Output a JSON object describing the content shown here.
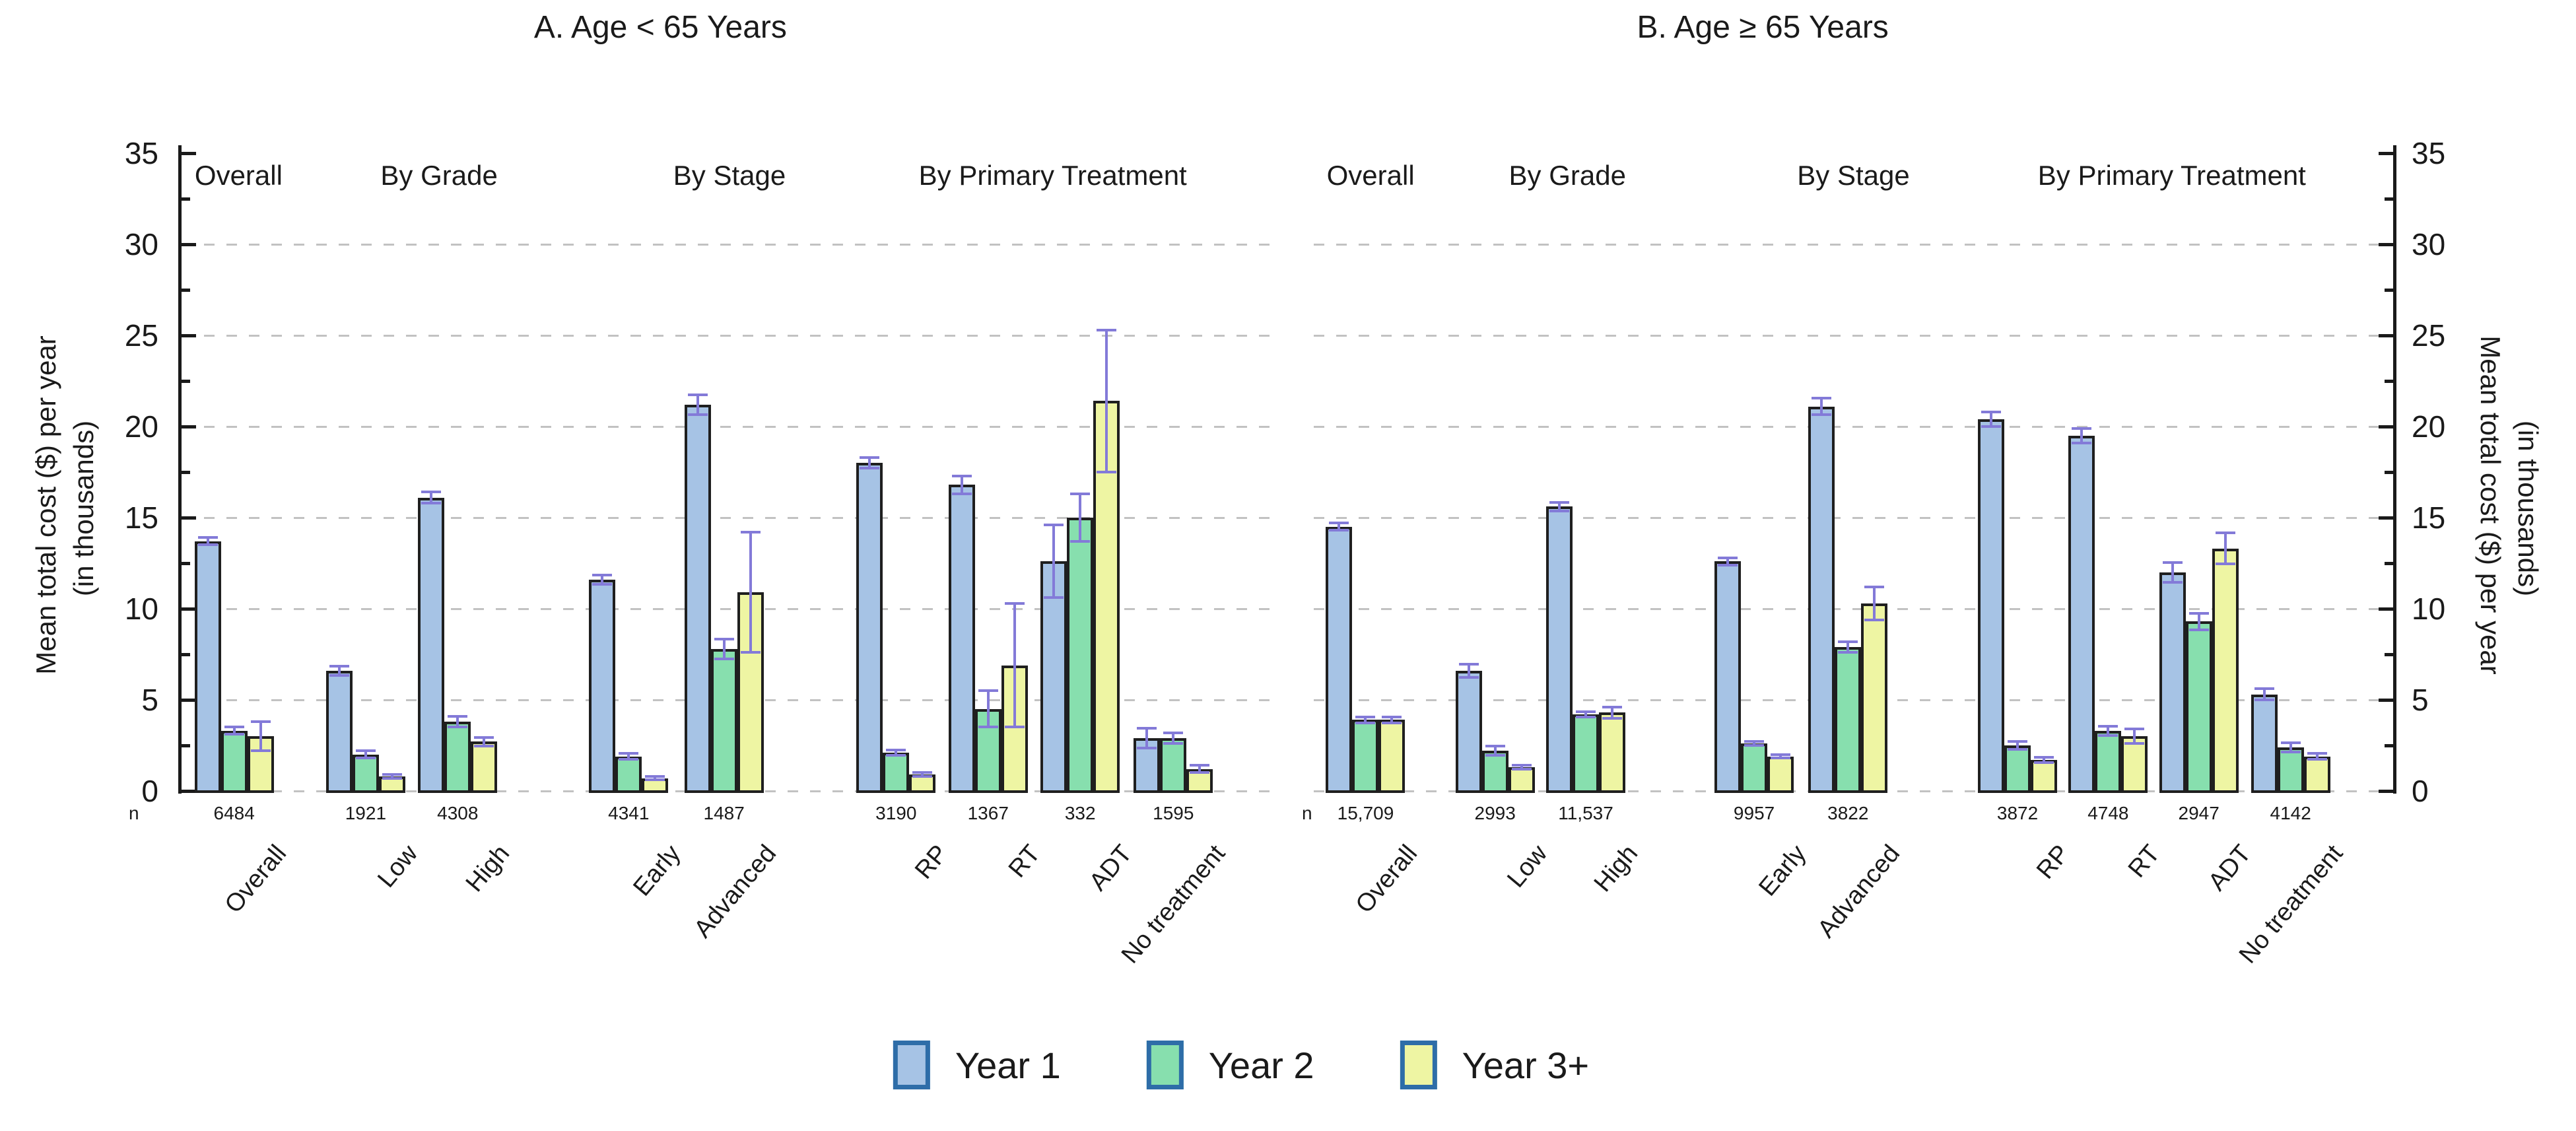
{
  "figure": {
    "background": "#ffffff",
    "y_axis_label_line1": "Mean total cost ($) per year",
    "y_axis_label_line2": "(in thousands)",
    "n_row_prefix": "n",
    "colors": {
      "year1_fill": "#a6c3e5",
      "year2_fill": "#87dfae",
      "year3_fill": "#eef5a3",
      "bar_border": "#1f1f1f",
      "legend_swatch_border": "#2e6da8",
      "error_bar": "#837ad8",
      "gridline": "#c2c2c2",
      "axis": "#1a1a1a"
    },
    "legend": [
      {
        "label": "Year 1",
        "color_key": "year1_fill"
      },
      {
        "label": "Year 2",
        "color_key": "year2_fill"
      },
      {
        "label": "Year 3+",
        "color_key": "year3_fill"
      }
    ]
  },
  "chart_data": [
    {
      "type": "bar",
      "panel": "A",
      "title": "A. Age < 65 Years",
      "ylabel": "Mean total cost ($) per year (in thousands)",
      "ylim": [
        0,
        35
      ],
      "yticks": [
        0,
        5,
        10,
        15,
        20,
        25,
        30,
        35
      ],
      "grid": "horizontal dashed lines every 5 units, including 0",
      "legend_position": "bottom center (shared)",
      "series_names": [
        "Year 1",
        "Year 2",
        "Year 3+"
      ],
      "error_bars": "symmetric, purple, with caps",
      "section_headers": [
        {
          "label": "Overall",
          "pos": 0.012,
          "align": "left"
        },
        {
          "label": "By Grade",
          "pos": 0.235,
          "align": "center"
        },
        {
          "label": "By Stage",
          "pos": 0.5,
          "align": "center"
        },
        {
          "label": "By Primary Treatment",
          "pos": 0.795,
          "align": "center"
        }
      ],
      "groups": [
        {
          "label": "Overall",
          "section": "Overall",
          "n": "6484",
          "pos": 0.048,
          "values": [
            13.7,
            3.3,
            3.0
          ],
          "errors": [
            0.2,
            0.2,
            0.8
          ]
        },
        {
          "label": "Low",
          "section": "By Grade",
          "n": "1921",
          "pos": 0.168,
          "values": [
            6.6,
            2.0,
            0.8
          ],
          "errors": [
            0.25,
            0.2,
            0.1
          ]
        },
        {
          "label": "High",
          "section": "By Grade",
          "n": "4308",
          "pos": 0.252,
          "values": [
            16.1,
            3.8,
            2.7
          ],
          "errors": [
            0.3,
            0.3,
            0.25
          ]
        },
        {
          "label": "Early",
          "section": "By Stage",
          "n": "4341",
          "pos": 0.408,
          "values": [
            11.6,
            1.9,
            0.7
          ],
          "errors": [
            0.25,
            0.15,
            0.1
          ]
        },
        {
          "label": "Advanced",
          "section": "By Stage",
          "n": "1487",
          "pos": 0.495,
          "values": [
            21.2,
            7.8,
            10.9
          ],
          "errors": [
            0.55,
            0.55,
            3.3
          ]
        },
        {
          "label": "RP",
          "section": "By Primary Treatment",
          "n": "3190",
          "pos": 0.652,
          "values": [
            18.0,
            2.1,
            0.9
          ],
          "errors": [
            0.3,
            0.15,
            0.1
          ]
        },
        {
          "label": "RT",
          "section": "By Primary Treatment",
          "n": "1367",
          "pos": 0.736,
          "values": [
            16.8,
            4.5,
            6.9
          ],
          "errors": [
            0.5,
            1.0,
            3.4
          ]
        },
        {
          "label": "ADT",
          "section": "By Primary Treatment",
          "n": "332",
          "pos": 0.82,
          "values": [
            12.6,
            15.0,
            21.4
          ],
          "errors": [
            2.0,
            1.3,
            3.9
          ]
        },
        {
          "label": "No treatment",
          "section": "By Primary Treatment",
          "n": "1595",
          "pos": 0.905,
          "values": [
            2.9,
            2.9,
            1.2
          ],
          "errors": [
            0.55,
            0.3,
            0.2
          ]
        }
      ]
    },
    {
      "type": "bar",
      "panel": "B",
      "title": "B. Age ≥ 65 Years",
      "ylabel": "Mean total cost ($) per year (in thousands)",
      "ylim": [
        0,
        35
      ],
      "yticks": [
        0,
        5,
        10,
        15,
        20,
        25,
        30,
        35
      ],
      "grid": "horizontal dashed lines every 5 units, including 0",
      "legend_position": "bottom center (shared)",
      "series_names": [
        "Year 1",
        "Year 2",
        "Year 3+"
      ],
      "error_bars": "symmetric, purple, with caps",
      "section_headers": [
        {
          "label": "Overall",
          "pos": 0.012,
          "align": "left"
        },
        {
          "label": "By Grade",
          "pos": 0.235,
          "align": "center"
        },
        {
          "label": "By Stage",
          "pos": 0.5,
          "align": "center"
        },
        {
          "label": "By Primary Treatment",
          "pos": 0.795,
          "align": "center"
        }
      ],
      "groups": [
        {
          "label": "Overall",
          "section": "Overall",
          "n": "15,709",
          "pos": 0.048,
          "values": [
            14.5,
            3.9,
            3.9
          ],
          "errors": [
            0.2,
            0.15,
            0.15
          ]
        },
        {
          "label": "Low",
          "section": "By Grade",
          "n": "2993",
          "pos": 0.168,
          "values": [
            6.6,
            2.2,
            1.3
          ],
          "errors": [
            0.35,
            0.25,
            0.1
          ]
        },
        {
          "label": "High",
          "section": "By Grade",
          "n": "11,537",
          "pos": 0.252,
          "values": [
            15.6,
            4.2,
            4.3
          ],
          "errors": [
            0.25,
            0.15,
            0.3
          ]
        },
        {
          "label": "Early",
          "section": "By Stage",
          "n": "9957",
          "pos": 0.408,
          "values": [
            12.6,
            2.6,
            1.9
          ],
          "errors": [
            0.2,
            0.1,
            0.1
          ]
        },
        {
          "label": "Advanced",
          "section": "By Stage",
          "n": "3822",
          "pos": 0.495,
          "values": [
            21.1,
            7.9,
            10.3
          ],
          "errors": [
            0.45,
            0.3,
            0.9
          ]
        },
        {
          "label": "RP",
          "section": "By Primary Treatment",
          "n": "3872",
          "pos": 0.652,
          "values": [
            20.4,
            2.5,
            1.7
          ],
          "errors": [
            0.4,
            0.2,
            0.15
          ]
        },
        {
          "label": "RT",
          "section": "By Primary Treatment",
          "n": "4748",
          "pos": 0.736,
          "values": [
            19.5,
            3.3,
            3.0
          ],
          "errors": [
            0.4,
            0.25,
            0.4
          ]
        },
        {
          "label": "ADT",
          "section": "By Primary Treatment",
          "n": "2947",
          "pos": 0.82,
          "values": [
            12.0,
            9.3,
            13.3
          ],
          "errors": [
            0.55,
            0.45,
            0.85
          ]
        },
        {
          "label": "No treatment",
          "section": "By Primary Treatment",
          "n": "4142",
          "pos": 0.905,
          "values": [
            5.3,
            2.4,
            1.9
          ],
          "errors": [
            0.3,
            0.25,
            0.15
          ]
        }
      ]
    }
  ]
}
